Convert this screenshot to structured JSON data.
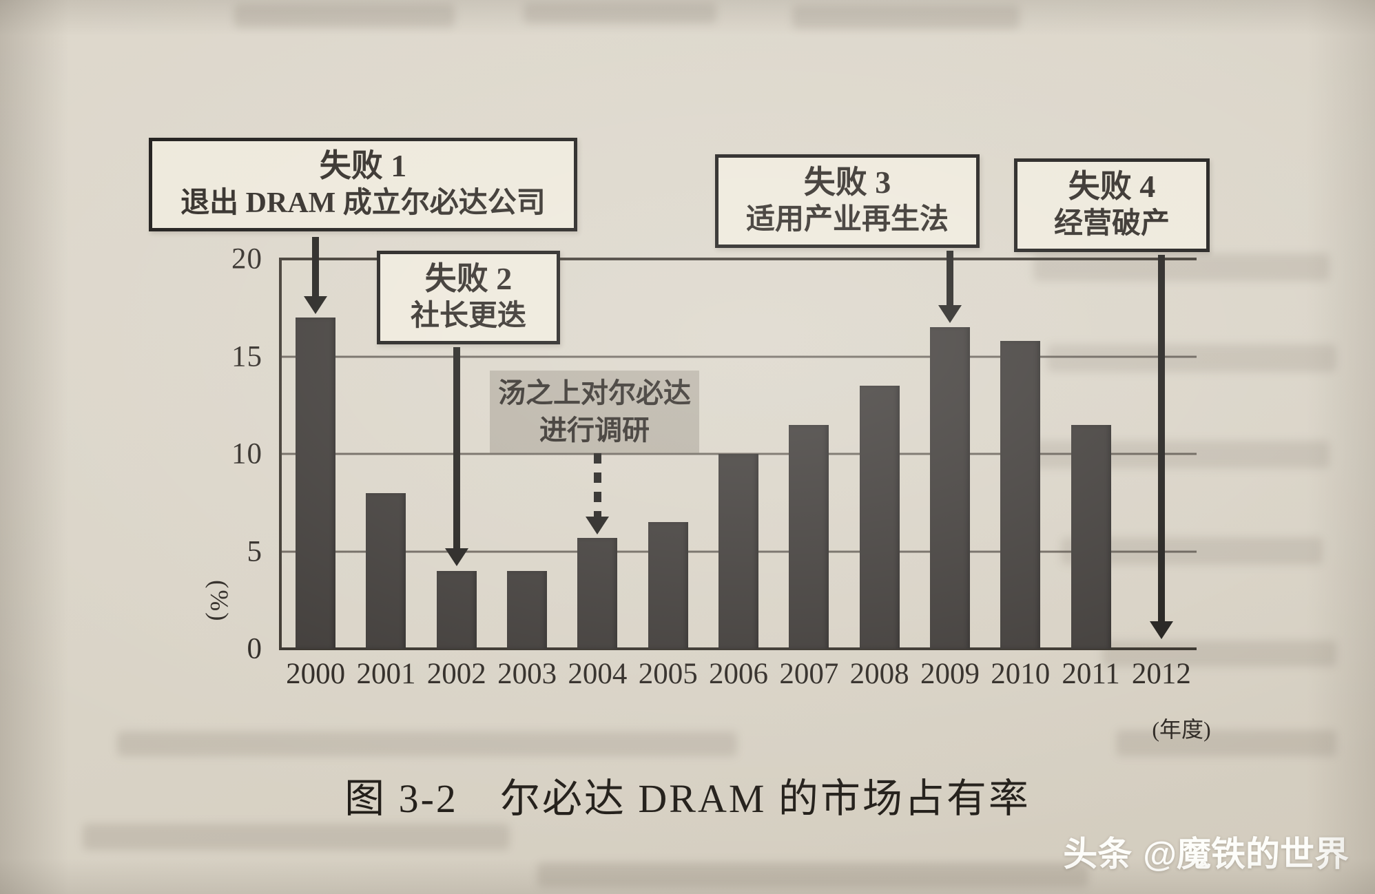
{
  "figure": {
    "caption": "图 3-2　尔必达 DRAM 的市场占有率"
  },
  "watermark": {
    "brand": "头条",
    "handle": "@魔铁的世界"
  },
  "chart_data": {
    "type": "bar",
    "title": "图 3-2 尔必达 DRAM 的市场占有率",
    "categories": [
      "2000",
      "2001",
      "2002",
      "2003",
      "2004",
      "2005",
      "2006",
      "2007",
      "2008",
      "2009",
      "2010",
      "2011",
      "2012"
    ],
    "values": [
      17,
      8,
      4,
      4,
      5.7,
      6.5,
      10,
      11.5,
      13.5,
      16.5,
      15.8,
      11.5,
      null
    ],
    "xlabel": "(年度)",
    "ylabel": "(%)",
    "ylim": [
      0,
      20
    ],
    "yticks": [
      20,
      15,
      10,
      5,
      0
    ],
    "grid": true,
    "legend": null,
    "bar_color": "#3a3633",
    "annotations": [
      {
        "label": "失败 1",
        "text": "退出 DRAM 成立尔必达公司",
        "target_year": "2000"
      },
      {
        "label": "失败 2",
        "text": "社长更迭",
        "target_year": "2002"
      },
      {
        "label": "失败 3",
        "text": "适用产业再生法",
        "target_year": "2009"
      },
      {
        "label": "失败 4",
        "text": "经营破产",
        "target_year": "2012"
      },
      {
        "label": "",
        "text": "汤之上对尔必达进行调研",
        "target_year": "2004",
        "style": "highlight-dashed-arrow"
      }
    ]
  }
}
